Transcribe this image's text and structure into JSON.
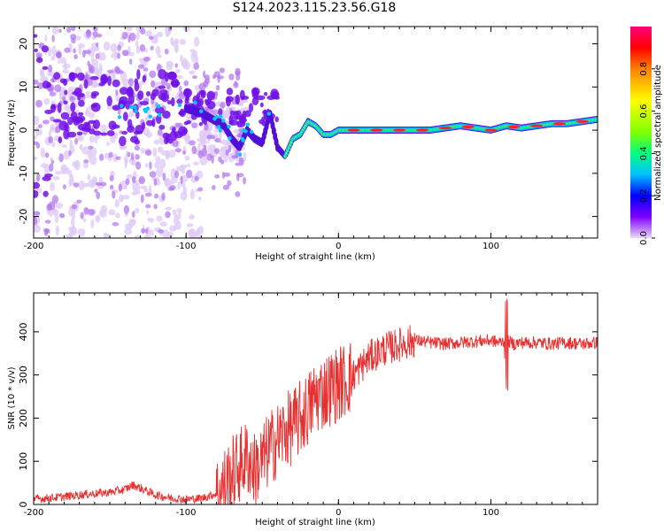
{
  "page_title": "S124.2023.115.23.56.G18",
  "chart_data": [
    {
      "type": "heatmap",
      "title": "S124.2023.115.23.56.G18",
      "xlabel": "Height of straight line (km)",
      "ylabel": "Frequency (Hz)",
      "xlim": [
        -200,
        170
      ],
      "ylim": [
        -25,
        24
      ],
      "xticks": [
        -200,
        -100,
        0,
        100
      ],
      "yticks": [
        -20,
        -10,
        0,
        10,
        20
      ],
      "grid": false,
      "colorbar": {
        "label": "Normalized spectral amplitude",
        "range": [
          0,
          1
        ],
        "ticks": [
          0.0,
          0.2,
          0.4,
          0.6,
          0.8
        ],
        "colormap": [
          "#e8d8f8",
          "#8000ff",
          "#0000ff",
          "#00c0ff",
          "#00ff80",
          "#80ff00",
          "#ffff00",
          "#ff8000",
          "#ff0000",
          "#ff0080"
        ]
      },
      "ridge": {
        "x": [
          -150,
          -130,
          -110,
          -100,
          -90,
          -85,
          -80,
          -75,
          -70,
          -65,
          -60,
          -55,
          -50,
          -45,
          -40,
          -35,
          -30,
          -25,
          -20,
          -15,
          -10,
          -5,
          0,
          10,
          20,
          30,
          40,
          50,
          60,
          70,
          80,
          90,
          100,
          110,
          120,
          130,
          140,
          150,
          160,
          170
        ],
        "y": [
          5,
          6,
          5,
          5,
          4,
          3,
          2,
          1,
          -2,
          -4,
          0,
          -2,
          -3,
          4,
          -4,
          -6,
          -2,
          -1,
          2,
          1,
          -1,
          -1,
          0,
          0,
          0,
          0,
          0,
          0,
          0,
          0.5,
          1,
          0.5,
          0,
          1,
          0.5,
          1,
          1.5,
          1.5,
          2,
          2.5
        ]
      }
    },
    {
      "type": "line",
      "xlabel": "Height of straight line (km)",
      "ylabel": "SNR (10 * v/v)",
      "xlim": [
        -200,
        170
      ],
      "ylim": [
        0,
        490
      ],
      "xticks": [
        -200,
        -100,
        0,
        100
      ],
      "yticks": [
        0,
        100,
        200,
        300,
        400
      ],
      "grid": false,
      "series": [
        {
          "color": "#e83030",
          "x": [
            -200,
            -190,
            -180,
            -170,
            -160,
            -150,
            -140,
            -135,
            -130,
            -125,
            -120,
            -110,
            -100,
            -90,
            -80,
            -75,
            -70,
            -65,
            -60,
            -55,
            -50,
            -45,
            -40,
            -35,
            -30,
            -25,
            -20,
            -15,
            -10,
            -5,
            0,
            5,
            10,
            15,
            20,
            25,
            30,
            35,
            40,
            45,
            50,
            55,
            60,
            70,
            80,
            90,
            100,
            105,
            110,
            115,
            120,
            130,
            140,
            150,
            160,
            170
          ],
          "y": [
            12,
            15,
            18,
            22,
            25,
            28,
            35,
            45,
            38,
            30,
            22,
            15,
            12,
            14,
            25,
            45,
            70,
            90,
            110,
            80,
            100,
            130,
            150,
            170,
            180,
            200,
            220,
            250,
            260,
            270,
            280,
            290,
            300,
            320,
            340,
            350,
            360,
            365,
            370,
            375,
            380,
            378,
            375,
            372,
            375,
            378,
            380,
            375,
            380,
            372,
            375,
            375,
            372,
            375,
            372,
            375
          ]
        }
      ]
    }
  ]
}
